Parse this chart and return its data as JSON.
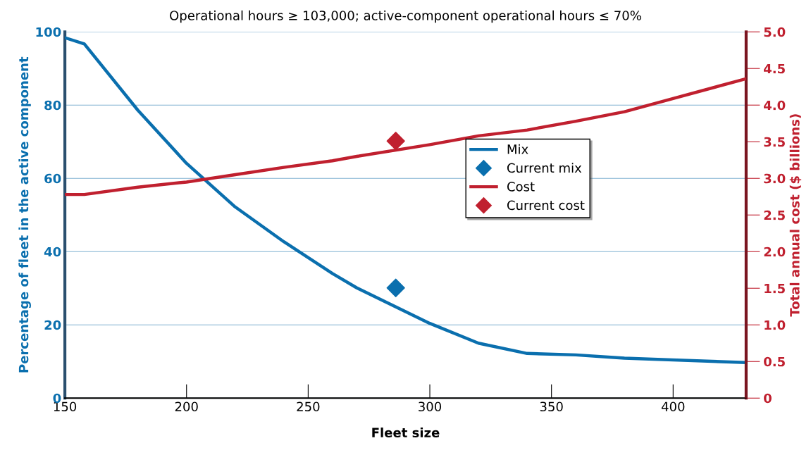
{
  "chart_data": {
    "type": "line",
    "title": "Operational hours ≥ 103,000; active-component operational hours ≤ 70%",
    "xlabel": "Fleet size",
    "ylabel": "Percentage of fleet in the active component",
    "y2label": "Total annual cost ($ billions)",
    "xlim": [
      150,
      430
    ],
    "xticks": [
      150,
      200,
      250,
      300,
      350,
      400
    ],
    "ylim": [
      0,
      100
    ],
    "yticks": [
      0,
      20,
      40,
      60,
      80,
      100
    ],
    "y2lim": [
      0,
      5.0
    ],
    "y2ticks": [
      {
        "value": 0,
        "label": "0"
      },
      {
        "value": 0.5,
        "label": "0.5"
      },
      {
        "value": 1.0,
        "label": "1.0"
      },
      {
        "value": 1.5,
        "label": "1.5"
      },
      {
        "value": 2.0,
        "label": "2.0"
      },
      {
        "value": 2.5,
        "label": "2.5"
      },
      {
        "value": 3.0,
        "label": "3.0"
      },
      {
        "value": 3.5,
        "label": "3.5"
      },
      {
        "value": 4.0,
        "label": "4.0"
      },
      {
        "value": 4.5,
        "label": "4.5"
      },
      {
        "value": 5.0,
        "label": "5.0"
      }
    ],
    "grid": "y",
    "legend": "right",
    "series": [
      {
        "name": "Mix",
        "color": "#0a6fae",
        "x": [
          150,
          158,
          180,
          200,
          220,
          240,
          260,
          270,
          300,
          320,
          340,
          360,
          380,
          430
        ],
        "values": [
          98.4,
          96.7,
          78.6,
          64.1,
          52.2,
          42.7,
          34,
          30.1,
          20.4,
          15,
          12.2,
          11.8,
          10.9,
          9.7
        ]
      },
      {
        "name": "Current mix",
        "type": "scatter",
        "marker": "diamond",
        "color": "#0a6fae",
        "x": [
          286
        ],
        "values": [
          30.1
        ]
      },
      {
        "name": "Cost",
        "axis": "y2",
        "color": "#c0202f",
        "x": [
          150,
          158,
          180,
          200,
          220,
          240,
          260,
          270,
          300,
          320,
          340,
          360,
          380,
          400,
          430
        ],
        "values": [
          2.78,
          2.78,
          2.88,
          2.95,
          3.05,
          3.15,
          3.24,
          3.3,
          3.46,
          3.58,
          3.66,
          3.78,
          3.91,
          4.09,
          4.36
        ]
      },
      {
        "name": "Current cost",
        "type": "scatter",
        "marker": "diamond",
        "axis": "y2",
        "color": "#c0202f",
        "x": [
          286
        ],
        "values": [
          3.51
        ]
      }
    ]
  }
}
